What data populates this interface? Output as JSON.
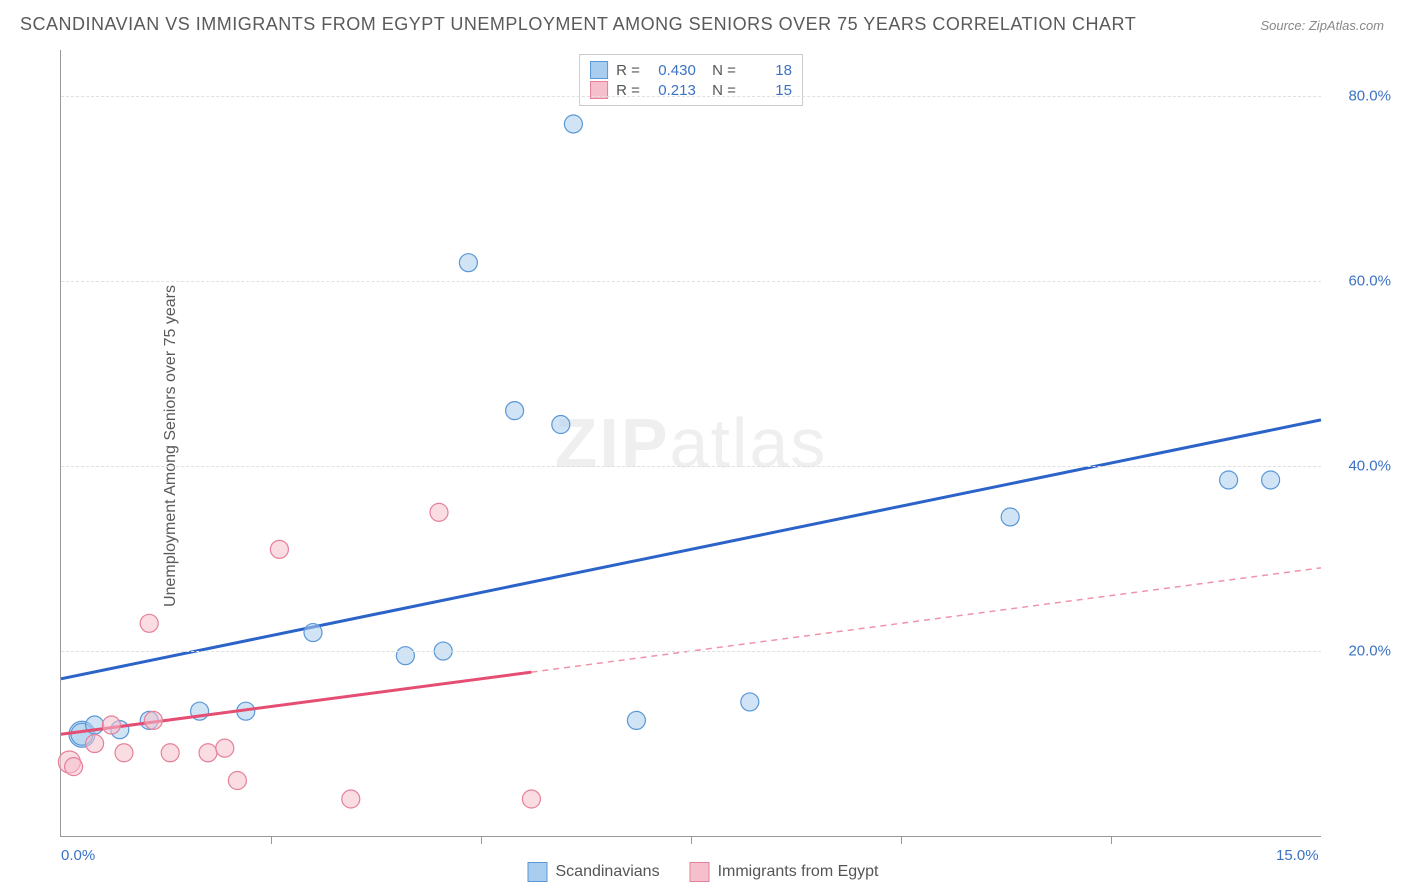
{
  "title": "SCANDINAVIAN VS IMMIGRANTS FROM EGYPT UNEMPLOYMENT AMONG SENIORS OVER 75 YEARS CORRELATION CHART",
  "source": "Source: ZipAtlas.com",
  "ylabel": "Unemployment Among Seniors over 75 years",
  "watermark_a": "ZIP",
  "watermark_b": "atlas",
  "chart": {
    "type": "scatter",
    "background_color": "#ffffff",
    "grid_color": "#e0e0e0",
    "axis_color": "#999999",
    "tick_label_color": "#3b72c4",
    "tick_fontsize": 15,
    "xlim": [
      0,
      15
    ],
    "ylim": [
      0,
      85
    ],
    "ytick_step": 20,
    "yticks": [
      20,
      40,
      60,
      80
    ],
    "ytick_labels": [
      "20.0%",
      "40.0%",
      "60.0%",
      "80.0%"
    ],
    "xticks": [
      0,
      15
    ],
    "xtick_labels": [
      "0.0%",
      "15.0%"
    ],
    "xtick_minor": [
      2.5,
      5,
      7.5,
      10,
      12.5
    ],
    "marker_radius": 9,
    "marker_opacity": 0.55,
    "marker_stroke_width": 1.2,
    "trend_line_width": 3
  },
  "series": [
    {
      "name": "Scandinavians",
      "color_fill": "#a9cdee",
      "color_stroke": "#5a97d6",
      "trend_color": "#2b63c9",
      "trend_dashed": false,
      "R": "0.430",
      "N": "18",
      "trend": {
        "x1": 0,
        "y1": 17,
        "x2": 15,
        "y2": 45
      },
      "points": [
        {
          "x": 0.25,
          "y": 11,
          "r": 13
        },
        {
          "x": 0.25,
          "y": 11,
          "r": 11
        },
        {
          "x": 0.4,
          "y": 12,
          "r": 9
        },
        {
          "x": 0.7,
          "y": 11.5,
          "r": 9
        },
        {
          "x": 1.05,
          "y": 12.5,
          "r": 9
        },
        {
          "x": 1.65,
          "y": 13.5,
          "r": 9
        },
        {
          "x": 2.2,
          "y": 13.5,
          "r": 9
        },
        {
          "x": 3.0,
          "y": 22,
          "r": 9
        },
        {
          "x": 4.1,
          "y": 19.5,
          "r": 9
        },
        {
          "x": 4.55,
          "y": 20,
          "r": 9
        },
        {
          "x": 5.4,
          "y": 46,
          "r": 9
        },
        {
          "x": 5.95,
          "y": 44.5,
          "r": 9
        },
        {
          "x": 6.1,
          "y": 77,
          "r": 9
        },
        {
          "x": 4.85,
          "y": 62,
          "r": 9
        },
        {
          "x": 6.85,
          "y": 12.5,
          "r": 9
        },
        {
          "x": 8.2,
          "y": 14.5,
          "r": 9
        },
        {
          "x": 11.3,
          "y": 34.5,
          "r": 9
        },
        {
          "x": 13.9,
          "y": 38.5,
          "r": 9
        },
        {
          "x": 14.4,
          "y": 38.5,
          "r": 9
        }
      ]
    },
    {
      "name": "Immigrants from Egypt",
      "color_fill": "#f5c0cc",
      "color_stroke": "#e6809a",
      "trend_color": "#e64d73",
      "trend_dashed": true,
      "trend_solid_until_x": 5.6,
      "R": "0.213",
      "N": "15",
      "trend": {
        "x1": 0,
        "y1": 11,
        "x2": 15,
        "y2": 29
      },
      "points": [
        {
          "x": 0.1,
          "y": 8,
          "r": 11
        },
        {
          "x": 0.15,
          "y": 7.5,
          "r": 9
        },
        {
          "x": 0.4,
          "y": 10,
          "r": 9
        },
        {
          "x": 0.6,
          "y": 12,
          "r": 9
        },
        {
          "x": 0.75,
          "y": 9,
          "r": 9
        },
        {
          "x": 1.05,
          "y": 23,
          "r": 9
        },
        {
          "x": 1.1,
          "y": 12.5,
          "r": 9
        },
        {
          "x": 1.3,
          "y": 9,
          "r": 9
        },
        {
          "x": 1.75,
          "y": 9,
          "r": 9
        },
        {
          "x": 1.95,
          "y": 9.5,
          "r": 9
        },
        {
          "x": 2.1,
          "y": 6,
          "r": 9
        },
        {
          "x": 2.6,
          "y": 31,
          "r": 9
        },
        {
          "x": 3.45,
          "y": 4,
          "r": 9
        },
        {
          "x": 4.5,
          "y": 35,
          "r": 9
        },
        {
          "x": 5.6,
          "y": 4,
          "r": 9
        }
      ]
    }
  ],
  "legend": {
    "series1": "Scandinavians",
    "series2": "Immigrants from Egypt"
  }
}
